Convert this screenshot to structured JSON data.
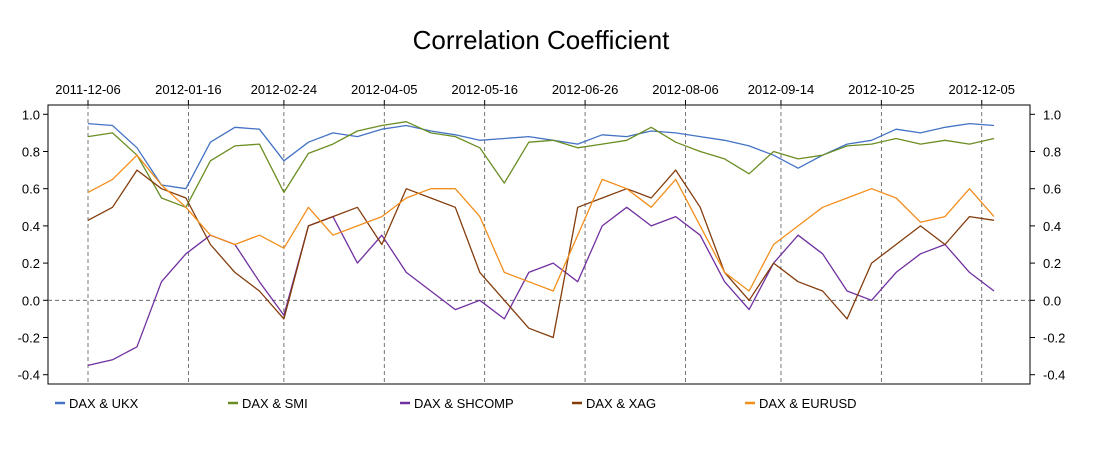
{
  "chart_data": {
    "type": "line",
    "title": "Correlation Coefficient",
    "xlabel": "",
    "ylabel": "",
    "x_start": "2011-12-06",
    "x_end": "2012-12-10",
    "ylim": [
      -0.45,
      1.05
    ],
    "y_ticks": [
      1.0,
      0.8,
      0.6,
      0.4,
      0.2,
      0.0,
      -0.2,
      -0.4
    ],
    "y_tick_labels": [
      "1.0",
      "0.8",
      "0.6",
      "0.4",
      "0.2",
      "0.0",
      "-0.2",
      "-0.4"
    ],
    "x_ticks": [
      "2011-12-06",
      "2012-01-16",
      "2012-02-24",
      "2012-04-05",
      "2012-05-16",
      "2012-06-26",
      "2012-08-06",
      "2012-09-14",
      "2012-10-25",
      "2012-12-05"
    ],
    "grid": "vertical dashed at x ticks, horizontal dashed at 0.0",
    "legend": "bottom",
    "series": [
      {
        "name": "DAX  &  UKX",
        "color": "#4472C4",
        "x": [
          "2011-12-06",
          "2011-12-16",
          "2011-12-26",
          "2012-01-05",
          "2012-01-15",
          "2012-01-25",
          "2012-02-04",
          "2012-02-14",
          "2012-02-24",
          "2012-03-05",
          "2012-03-15",
          "2012-03-25",
          "2012-04-04",
          "2012-04-14",
          "2012-04-24",
          "2012-05-04",
          "2012-05-14",
          "2012-05-24",
          "2012-06-03",
          "2012-06-13",
          "2012-06-23",
          "2012-07-03",
          "2012-07-13",
          "2012-07-23",
          "2012-08-02",
          "2012-08-12",
          "2012-08-22",
          "2012-09-01",
          "2012-09-11",
          "2012-09-21",
          "2012-10-01",
          "2012-10-11",
          "2012-10-21",
          "2012-10-31",
          "2012-11-10",
          "2012-11-20",
          "2012-11-30",
          "2012-12-10"
        ],
        "y": [
          0.95,
          0.94,
          0.82,
          0.62,
          0.6,
          0.85,
          0.93,
          0.92,
          0.75,
          0.85,
          0.9,
          0.88,
          0.92,
          0.94,
          0.91,
          0.89,
          0.86,
          0.87,
          0.88,
          0.86,
          0.84,
          0.89,
          0.88,
          0.91,
          0.9,
          0.88,
          0.86,
          0.83,
          0.78,
          0.71,
          0.78,
          0.84,
          0.86,
          0.92,
          0.9,
          0.93,
          0.95,
          0.94
        ]
      },
      {
        "name": "DAX  &  SMI",
        "color": "#6B8E23",
        "x": [
          "2011-12-06",
          "2011-12-16",
          "2011-12-26",
          "2012-01-05",
          "2012-01-15",
          "2012-01-25",
          "2012-02-04",
          "2012-02-14",
          "2012-02-24",
          "2012-03-05",
          "2012-03-15",
          "2012-03-25",
          "2012-04-04",
          "2012-04-14",
          "2012-04-24",
          "2012-05-04",
          "2012-05-14",
          "2012-05-24",
          "2012-06-03",
          "2012-06-13",
          "2012-06-23",
          "2012-07-03",
          "2012-07-13",
          "2012-07-23",
          "2012-08-02",
          "2012-08-12",
          "2012-08-22",
          "2012-09-01",
          "2012-09-11",
          "2012-09-21",
          "2012-10-01",
          "2012-10-11",
          "2012-10-21",
          "2012-10-31",
          "2012-11-10",
          "2012-11-20",
          "2012-11-30",
          "2012-12-10"
        ],
        "y": [
          0.88,
          0.9,
          0.78,
          0.55,
          0.5,
          0.75,
          0.83,
          0.84,
          0.58,
          0.79,
          0.84,
          0.91,
          0.94,
          0.96,
          0.9,
          0.88,
          0.82,
          0.63,
          0.85,
          0.86,
          0.82,
          0.84,
          0.86,
          0.93,
          0.85,
          0.8,
          0.76,
          0.68,
          0.8,
          0.76,
          0.78,
          0.83,
          0.84,
          0.87,
          0.84,
          0.86,
          0.84,
          0.87
        ]
      },
      {
        "name": "DAX  &  SHCOMP",
        "color": "#7030A0",
        "x": [
          "2011-12-06",
          "2011-12-16",
          "2011-12-26",
          "2012-01-05",
          "2012-01-15",
          "2012-01-25",
          "2012-02-04",
          "2012-02-14",
          "2012-02-24",
          "2012-03-05",
          "2012-03-15",
          "2012-03-25",
          "2012-04-04",
          "2012-04-14",
          "2012-04-24",
          "2012-05-04",
          "2012-05-14",
          "2012-05-24",
          "2012-06-03",
          "2012-06-13",
          "2012-06-23",
          "2012-07-03",
          "2012-07-13",
          "2012-07-23",
          "2012-08-02",
          "2012-08-12",
          "2012-08-22",
          "2012-09-01",
          "2012-09-11",
          "2012-09-21",
          "2012-10-01",
          "2012-10-11",
          "2012-10-21",
          "2012-10-31",
          "2012-11-10",
          "2012-11-20",
          "2012-11-30",
          "2012-12-10"
        ],
        "y": [
          -0.35,
          -0.32,
          -0.25,
          0.1,
          0.25,
          0.35,
          0.3,
          0.1,
          -0.08,
          0.4,
          0.45,
          0.2,
          0.35,
          0.15,
          0.05,
          -0.05,
          0.0,
          -0.1,
          0.15,
          0.2,
          0.1,
          0.4,
          0.5,
          0.4,
          0.45,
          0.35,
          0.1,
          -0.05,
          0.2,
          0.35,
          0.25,
          0.05,
          0.0,
          0.15,
          0.25,
          0.3,
          0.15,
          0.05
        ]
      },
      {
        "name": "DAX  &  XAG",
        "color": "#843C0C",
        "x": [
          "2011-12-06",
          "2011-12-16",
          "2011-12-26",
          "2012-01-05",
          "2012-01-15",
          "2012-01-25",
          "2012-02-04",
          "2012-02-14",
          "2012-02-24",
          "2012-03-05",
          "2012-03-15",
          "2012-03-25",
          "2012-04-04",
          "2012-04-14",
          "2012-04-24",
          "2012-05-04",
          "2012-05-14",
          "2012-05-24",
          "2012-06-03",
          "2012-06-13",
          "2012-06-23",
          "2012-07-03",
          "2012-07-13",
          "2012-07-23",
          "2012-08-02",
          "2012-08-12",
          "2012-08-22",
          "2012-09-01",
          "2012-09-11",
          "2012-09-21",
          "2012-10-01",
          "2012-10-11",
          "2012-10-21",
          "2012-10-31",
          "2012-11-10",
          "2012-11-20",
          "2012-11-30",
          "2012-12-10"
        ],
        "y": [
          0.43,
          0.5,
          0.7,
          0.6,
          0.55,
          0.3,
          0.15,
          0.05,
          -0.1,
          0.4,
          0.45,
          0.5,
          0.3,
          0.6,
          0.55,
          0.5,
          0.15,
          0.0,
          -0.15,
          -0.2,
          0.5,
          0.55,
          0.6,
          0.55,
          0.7,
          0.5,
          0.15,
          0.0,
          0.2,
          0.1,
          0.05,
          -0.1,
          0.2,
          0.3,
          0.4,
          0.3,
          0.45,
          0.43
        ]
      },
      {
        "name": "DAX  &  EURUSD",
        "color": "#F28E1C",
        "x": [
          "2011-12-06",
          "2011-12-16",
          "2011-12-26",
          "2012-01-05",
          "2012-01-15",
          "2012-01-25",
          "2012-02-04",
          "2012-02-14",
          "2012-02-24",
          "2012-03-05",
          "2012-03-15",
          "2012-03-25",
          "2012-04-04",
          "2012-04-14",
          "2012-04-24",
          "2012-05-04",
          "2012-05-14",
          "2012-05-24",
          "2012-06-03",
          "2012-06-13",
          "2012-06-23",
          "2012-07-03",
          "2012-07-13",
          "2012-07-23",
          "2012-08-02",
          "2012-08-12",
          "2012-08-22",
          "2012-09-01",
          "2012-09-11",
          "2012-09-21",
          "2012-10-01",
          "2012-10-11",
          "2012-10-21",
          "2012-10-31",
          "2012-11-10",
          "2012-11-20",
          "2012-11-30",
          "2012-12-10"
        ],
        "y": [
          0.58,
          0.65,
          0.78,
          0.62,
          0.5,
          0.35,
          0.3,
          0.35,
          0.28,
          0.5,
          0.35,
          0.4,
          0.45,
          0.55,
          0.6,
          0.6,
          0.45,
          0.15,
          0.1,
          0.05,
          0.35,
          0.65,
          0.6,
          0.5,
          0.65,
          0.4,
          0.15,
          0.05,
          0.3,
          0.4,
          0.5,
          0.55,
          0.6,
          0.55,
          0.42,
          0.45,
          0.6,
          0.45
        ]
      }
    ]
  }
}
